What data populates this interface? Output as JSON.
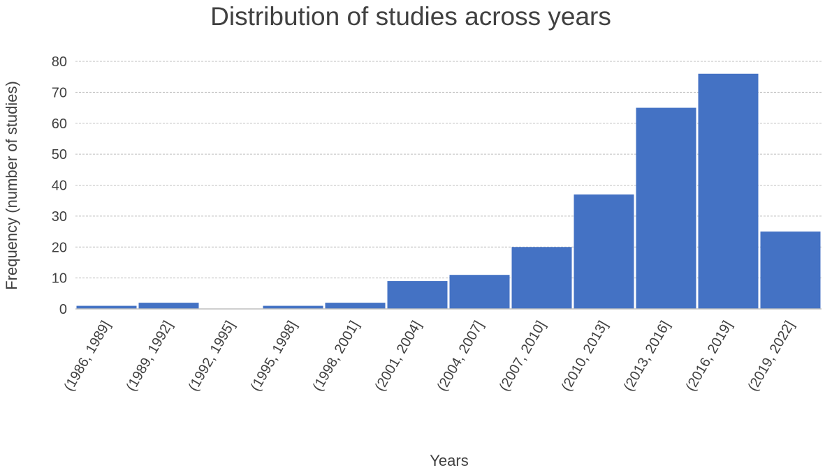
{
  "chart_data": {
    "type": "bar",
    "title": "Distribution of studies across years",
    "xlabel": "Years",
    "ylabel": "Frequency (number of studies)",
    "categories": [
      "(1986, 1989]",
      "(1989, 1992]",
      "(1992, 1995]",
      "(1995, 1998]",
      "(1998, 2001]",
      "(2001, 2004]",
      "(2004, 2007]",
      "(2007, 2010]",
      "(2010, 2013]",
      "(2013, 2016]",
      "(2016, 2019]",
      "(2019, 2022]"
    ],
    "values": [
      1,
      2,
      0,
      1,
      2,
      9,
      11,
      20,
      37,
      65,
      76,
      25
    ],
    "ylim": [
      0,
      80
    ],
    "yticks": [
      0,
      10,
      20,
      30,
      40,
      50,
      60,
      70,
      80
    ],
    "grid": true,
    "bar_color": "#4472c4",
    "gridline_color": "#bfbfbf",
    "text_color": "#404040"
  }
}
